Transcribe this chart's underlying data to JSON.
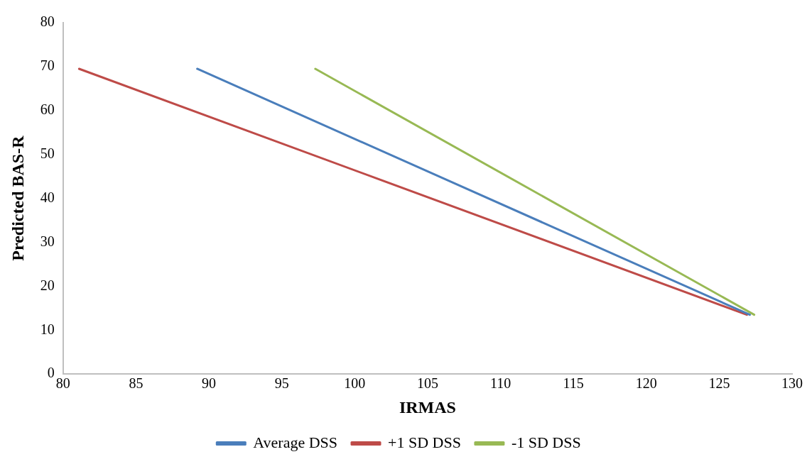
{
  "chart_data": {
    "type": "line",
    "xlabel": "IRMAS",
    "ylabel": "Predicted BAS-R",
    "xlim": [
      80,
      130
    ],
    "xticks": [
      80,
      85,
      90,
      95,
      100,
      105,
      110,
      115,
      120,
      125,
      130
    ],
    "ylim": [
      0,
      80
    ],
    "yticks": [
      0,
      10,
      20,
      30,
      40,
      50,
      60,
      70,
      80
    ],
    "grid": false,
    "legend": "bottom",
    "marker": "none",
    "line_style": "solid",
    "series": [
      {
        "name": "Average DSS",
        "color": "#4a7ebb",
        "x": [
          89.2,
          127.1
        ],
        "values": [
          69.5,
          13.5
        ]
      },
      {
        "name": "+1 SD DSS",
        "color": "#be4b48",
        "x": [
          81.1,
          126.9
        ],
        "values": [
          69.5,
          13.5
        ]
      },
      {
        "name": "-1 SD DSS",
        "color": "#98b954",
        "x": [
          97.3,
          127.4
        ],
        "values": [
          69.5,
          13.5
        ]
      }
    ]
  }
}
